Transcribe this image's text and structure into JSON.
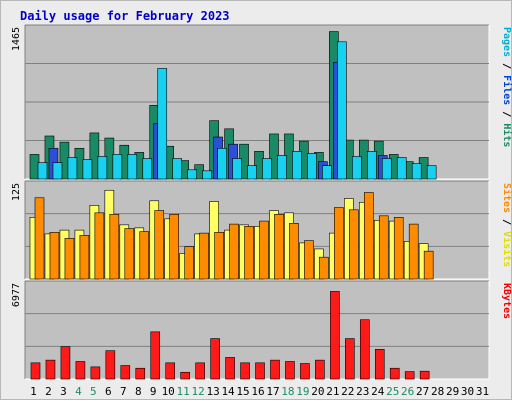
{
  "title": "Daily usage for February 2023",
  "chart_data": [
    {
      "type": "bar",
      "panel": "top",
      "ymax_label": "1465",
      "ylim": [
        0,
        1465
      ],
      "grid": true,
      "side_labels": [
        {
          "text": "Pages",
          "color": "#00b0d0"
        },
        {
          "text": " / ",
          "color": "#000000"
        },
        {
          "text": "Files",
          "color": "#0044cc"
        },
        {
          "text": " / ",
          "color": "#000000"
        },
        {
          "text": "Hits",
          "color": "#1a8a66"
        }
      ],
      "series": [
        {
          "name": "Hits",
          "color": "#1a8a66",
          "values": [
            240,
            420,
            360,
            300,
            450,
            400,
            330,
            260,
            720,
            320,
            180,
            140,
            570,
            490,
            340,
            270,
            440,
            440,
            370,
            260,
            1440,
            380,
            380,
            370,
            240,
            170,
            210,
            0,
            0,
            0,
            0
          ]
        },
        {
          "name": "Files",
          "color": "#2c4fd6",
          "values": [
            0,
            300,
            0,
            0,
            0,
            0,
            0,
            0,
            540,
            0,
            0,
            0,
            410,
            340,
            0,
            0,
            0,
            0,
            0,
            170,
            1140,
            0,
            0,
            230,
            0,
            0,
            0,
            0,
            0,
            0,
            0
          ]
        },
        {
          "name": "Pages",
          "color": "#18d0ef",
          "values": [
            160,
            160,
            210,
            190,
            220,
            240,
            240,
            200,
            1080,
            200,
            90,
            80,
            300,
            200,
            130,
            200,
            230,
            270,
            250,
            130,
            1340,
            220,
            270,
            200,
            210,
            150,
            130,
            0,
            0,
            0,
            0
          ]
        }
      ]
    },
    {
      "type": "bar",
      "panel": "middle",
      "ymax_label": "125",
      "ylim": [
        0,
        125
      ],
      "grid": true,
      "side_labels": [
        {
          "text": "Sites",
          "color": "#ff8800"
        },
        {
          "text": " / ",
          "color": "#000000"
        },
        {
          "text": "Visits",
          "color": "#dddd00"
        }
      ],
      "series": [
        {
          "name": "Visits",
          "color": "#ffff66",
          "values": [
            82,
            60,
            65,
            65,
            98,
            118,
            72,
            68,
            104,
            80,
            34,
            60,
            103,
            65,
            72,
            70,
            91,
            88,
            48,
            40,
            61,
            107,
            102,
            78,
            77,
            50,
            47,
            0,
            0,
            0,
            0
          ]
        },
        {
          "name": "Sites",
          "color": "#ff8c00",
          "values": [
            108,
            62,
            54,
            58,
            88,
            86,
            67,
            63,
            91,
            86,
            43,
            61,
            62,
            73,
            70,
            77,
            86,
            74,
            51,
            29,
            95,
            92,
            115,
            84,
            82,
            73,
            37,
            0,
            0,
            0,
            0
          ]
        }
      ]
    },
    {
      "type": "bar",
      "panel": "bottom",
      "ymax_label": "6977",
      "ylim": [
        0,
        6977
      ],
      "grid": true,
      "side_labels": [
        {
          "text": "KBytes",
          "color": "#ee0000"
        }
      ],
      "series": [
        {
          "name": "KBytes",
          "color": "#ff1a1a",
          "values": [
            1200,
            1400,
            2400,
            1300,
            900,
            2100,
            1000,
            800,
            3500,
            1200,
            500,
            1200,
            3000,
            1600,
            1200,
            1200,
            1400,
            1300,
            1150,
            1400,
            6500,
            3000,
            4400,
            2200,
            800,
            550,
            580,
            0,
            0,
            0,
            0
          ]
        }
      ]
    }
  ],
  "days": [
    "1",
    "2",
    "3",
    "4",
    "5",
    "6",
    "7",
    "8",
    "9",
    "10",
    "11",
    "12",
    "13",
    "14",
    "15",
    "16",
    "17",
    "18",
    "19",
    "20",
    "21",
    "22",
    "23",
    "24",
    "25",
    "26",
    "27",
    "28",
    "29",
    "30",
    "31"
  ],
  "weekend_days": [
    4,
    5,
    11,
    12,
    18,
    19,
    25,
    26
  ],
  "colors": {
    "weekday_label": "#000000",
    "weekend_label": "#1a8a66",
    "panel_bg": "#c0c0c0",
    "title": "#0000cc"
  }
}
